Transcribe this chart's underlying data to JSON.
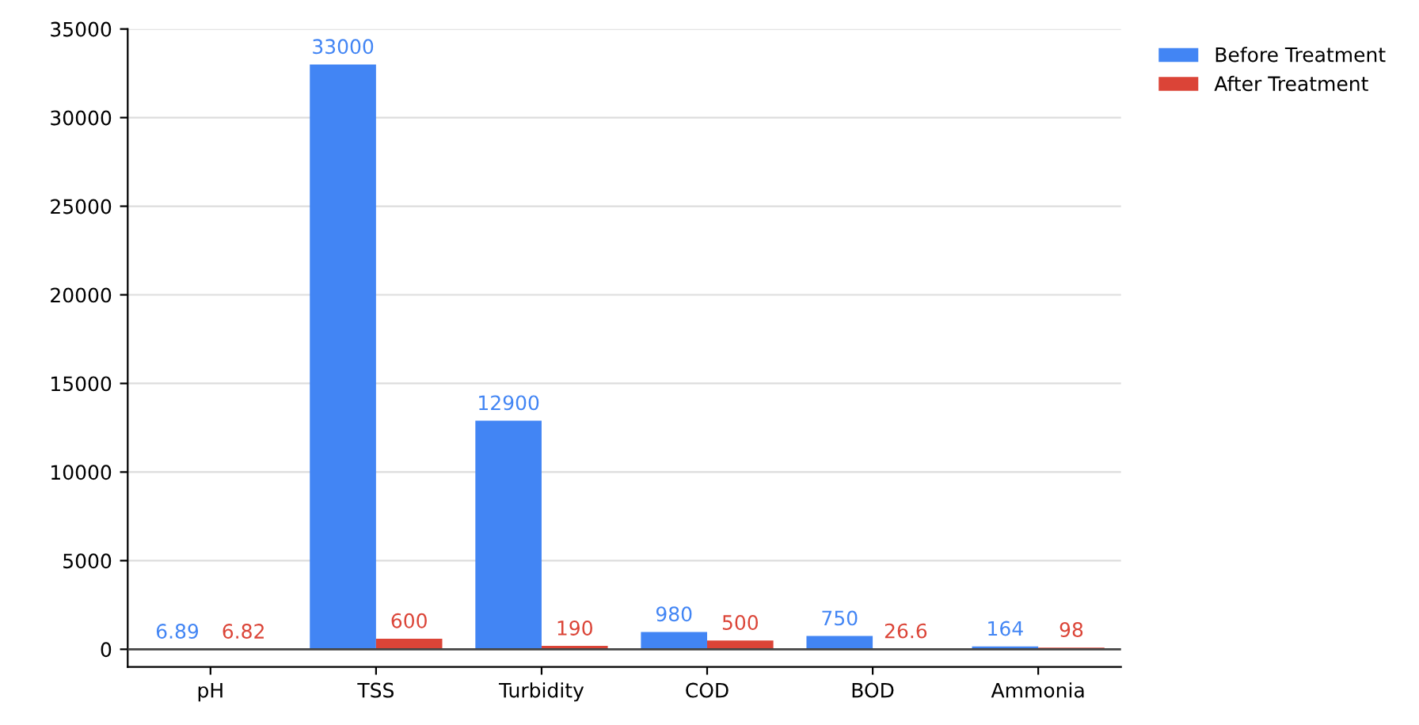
{
  "chart_data": {
    "type": "bar",
    "categories": [
      "pH",
      "TSS",
      "Turbidity",
      "COD",
      "BOD",
      "Ammonia"
    ],
    "series": [
      {
        "name": "Before Treatment",
        "color": "#4285f4",
        "values": [
          6.89,
          33000,
          12900,
          980,
          750,
          164
        ]
      },
      {
        "name": "After Treatment",
        "color": "#db4437",
        "values": [
          6.82,
          600,
          190,
          500,
          26.6,
          98
        ]
      }
    ],
    "ylim": [
      -1000,
      35000
    ],
    "yticks": [
      0,
      5000,
      10000,
      15000,
      20000,
      25000,
      30000,
      35000
    ],
    "grid": "y",
    "legend": "top right",
    "data_labels": true
  }
}
